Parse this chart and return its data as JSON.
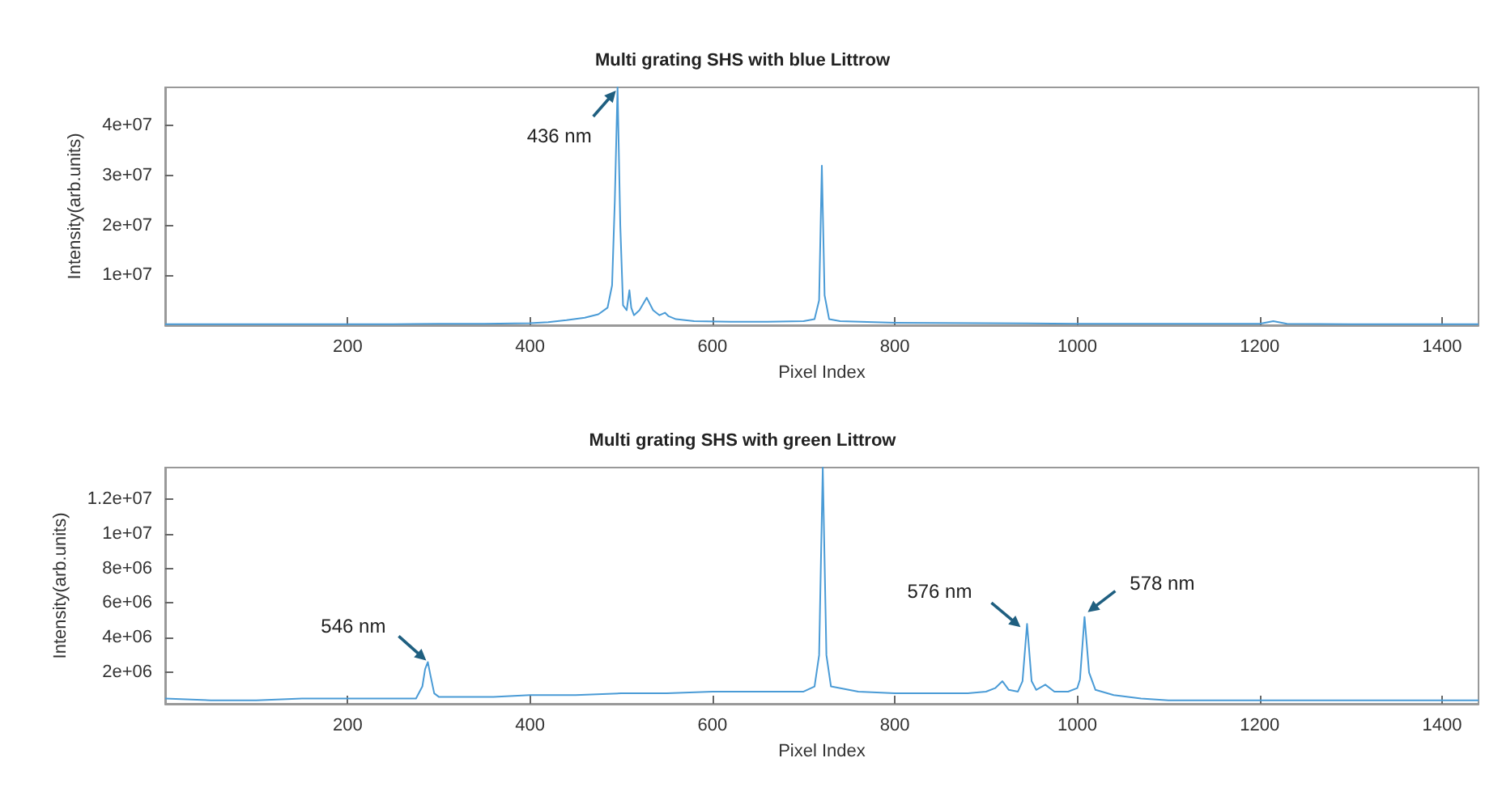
{
  "chart_data": [
    {
      "type": "line",
      "title": "Multi grating SHS with blue Littrow",
      "xlabel": "Pixel Index",
      "ylabel": "Intensity(arb.units)",
      "xlim": [
        0,
        1440
      ],
      "xticks": [
        200,
        400,
        600,
        800,
        1000,
        1200,
        1400
      ],
      "ylim": [
        0,
        47700000
      ],
      "yticks": [
        {
          "value": 10000000,
          "label": "1e+07"
        },
        {
          "value": 20000000,
          "label": "2e+07"
        },
        {
          "value": 30000000,
          "label": "3e+07"
        },
        {
          "value": 40000000,
          "label": "4e+07"
        }
      ],
      "grid": false,
      "marker": "none",
      "line_style": "solid",
      "series": [
        {
          "color": "#4a9bd6",
          "x": [
            0,
            50,
            100,
            150,
            200,
            250,
            300,
            350,
            400,
            420,
            440,
            460,
            475,
            485,
            490,
            493,
            496,
            499,
            502,
            506,
            509,
            511,
            514,
            520,
            528,
            535,
            542,
            548,
            552,
            560,
            580,
            620,
            660,
            700,
            712,
            717,
            720,
            723,
            728,
            740,
            800,
            900,
            1000,
            1100,
            1200,
            1215,
            1230,
            1300,
            1440
          ],
          "values": [
            200000,
            200000,
            200000,
            200000,
            200000,
            200000,
            300000,
            300000,
            400000,
            600000,
            1000000,
            1500000,
            2200000,
            3500000,
            8000000,
            25000000,
            47700000,
            20000000,
            4000000,
            3000000,
            7000000,
            3500000,
            2000000,
            3000000,
            5500000,
            3000000,
            2000000,
            2500000,
            1800000,
            1200000,
            800000,
            700000,
            700000,
            800000,
            1200000,
            5000000,
            32000000,
            6000000,
            1200000,
            800000,
            500000,
            400000,
            300000,
            300000,
            300000,
            800000,
            300000,
            200000,
            200000
          ]
        }
      ],
      "annotations": [
        {
          "text": "436 nm",
          "x": 496,
          "y": 47700000
        }
      ]
    },
    {
      "type": "line",
      "title": "Multi grating SHS with green Littrow",
      "xlabel": "Pixel Index",
      "ylabel": "Intensity(arb.units)",
      "xlim": [
        0,
        1440
      ],
      "xticks": [
        200,
        400,
        600,
        800,
        1000,
        1200,
        1400
      ],
      "ylim": [
        200000,
        13800000
      ],
      "yticks": [
        {
          "value": 2000000,
          "label": "2e+06"
        },
        {
          "value": 4000000,
          "label": "4e+06"
        },
        {
          "value": 6000000,
          "label": "6e+06"
        },
        {
          "value": 8000000,
          "label": "8e+06"
        },
        {
          "value": 10000000,
          "label": "1e+07"
        },
        {
          "value": 12000000,
          "label": "1.2e+07"
        }
      ],
      "grid": false,
      "marker": "none",
      "line_style": "solid",
      "series": [
        {
          "color": "#4a9bd6",
          "x": [
            0,
            50,
            100,
            150,
            200,
            250,
            275,
            282,
            285,
            288,
            291,
            295,
            300,
            320,
            360,
            400,
            450,
            500,
            550,
            600,
            650,
            700,
            712,
            717,
            721,
            725,
            730,
            760,
            800,
            850,
            880,
            900,
            910,
            918,
            925,
            935,
            940,
            945,
            950,
            955,
            965,
            975,
            990,
            1000,
            1003,
            1008,
            1013,
            1020,
            1040,
            1070,
            1100,
            1200,
            1300,
            1440
          ],
          "values": [
            500000,
            400000,
            400000,
            500000,
            500000,
            500000,
            500000,
            1200000,
            2200000,
            2600000,
            1800000,
            800000,
            600000,
            600000,
            600000,
            700000,
            700000,
            800000,
            800000,
            900000,
            900000,
            900000,
            1200000,
            3000000,
            13800000,
            3000000,
            1200000,
            900000,
            800000,
            800000,
            800000,
            900000,
            1100000,
            1500000,
            1000000,
            900000,
            1500000,
            4800000,
            1500000,
            1000000,
            1300000,
            900000,
            900000,
            1100000,
            1600000,
            5200000,
            2000000,
            1000000,
            700000,
            500000,
            400000,
            400000,
            400000,
            400000
          ]
        }
      ],
      "annotations": [
        {
          "text": "546 nm",
          "x": 288,
          "y": 2600000
        },
        {
          "text": "576 nm",
          "x": 945,
          "y": 4800000
        },
        {
          "text": "578 nm",
          "x": 1008,
          "y": 5200000
        }
      ]
    }
  ]
}
